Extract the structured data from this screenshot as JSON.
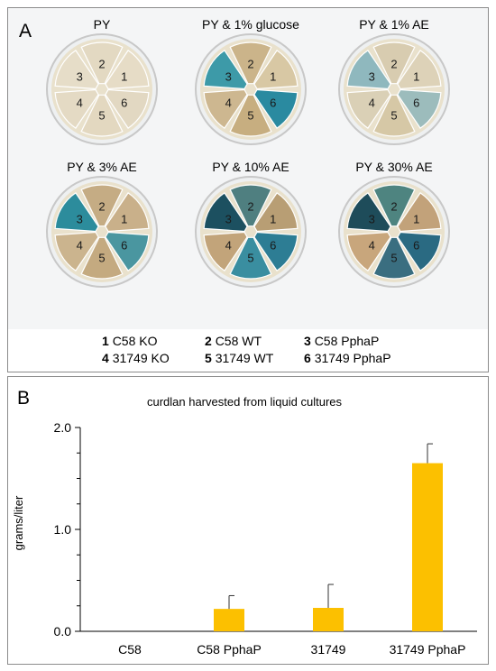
{
  "panel_a": {
    "letter": "A",
    "plates": [
      {
        "title": "PY",
        "sectors": [
          {
            "num": "1",
            "color": "#e6dcc6"
          },
          {
            "num": "6",
            "color": "#e2d8c2"
          },
          {
            "num": "5",
            "color": "#e3d8c0"
          },
          {
            "num": "4",
            "color": "#e4dac4"
          },
          {
            "num": "3",
            "color": "#e6ddc8"
          },
          {
            "num": "2",
            "color": "#e3d9c2"
          }
        ]
      },
      {
        "title": "PY & 1% glucose",
        "sectors": [
          {
            "num": "1",
            "color": "#d8c8a4"
          },
          {
            "num": "6",
            "color": "#2a8aa0"
          },
          {
            "num": "5",
            "color": "#c7ae80"
          },
          {
            "num": "4",
            "color": "#cdb790"
          },
          {
            "num": "3",
            "color": "#3d9aa8"
          },
          {
            "num": "2",
            "color": "#cbb48a"
          }
        ]
      },
      {
        "title": "PY & 1% AE",
        "sectors": [
          {
            "num": "1",
            "color": "#ddd2b8"
          },
          {
            "num": "6",
            "color": "#9cbcbc"
          },
          {
            "num": "5",
            "color": "#d6c8a6"
          },
          {
            "num": "4",
            "color": "#dad0b6"
          },
          {
            "num": "3",
            "color": "#8fb8be"
          },
          {
            "num": "2",
            "color": "#d8ccb0"
          }
        ]
      },
      {
        "title": "PY & 3% AE",
        "sectors": [
          {
            "num": "1",
            "color": "#c9b08a"
          },
          {
            "num": "6",
            "color": "#4a96a0"
          },
          {
            "num": "5",
            "color": "#c4aa80"
          },
          {
            "num": "4",
            "color": "#cbb48e"
          },
          {
            "num": "3",
            "color": "#2c8c9c"
          },
          {
            "num": "2",
            "color": "#c5ac84"
          }
        ]
      },
      {
        "title": "PY & 10% AE",
        "sectors": [
          {
            "num": "1",
            "color": "#b89e74"
          },
          {
            "num": "6",
            "color": "#2d7d94"
          },
          {
            "num": "5",
            "color": "#3a8ea0"
          },
          {
            "num": "4",
            "color": "#c2a47a"
          },
          {
            "num": "3",
            "color": "#1c5060"
          },
          {
            "num": "2",
            "color": "#4f7f80"
          }
        ]
      },
      {
        "title": "PY & 30% AE",
        "sectors": [
          {
            "num": "1",
            "color": "#c2a27a"
          },
          {
            "num": "6",
            "color": "#2a6a82"
          },
          {
            "num": "5",
            "color": "#3a6e80"
          },
          {
            "num": "4",
            "color": "#c8a67c"
          },
          {
            "num": "3",
            "color": "#1e4c5a"
          },
          {
            "num": "2",
            "color": "#4e8480"
          }
        ]
      }
    ],
    "legend": [
      {
        "num": "1",
        "label": "C58 KO"
      },
      {
        "num": "2",
        "label": "C58 WT"
      },
      {
        "num": "3",
        "label": "C58 PphaP"
      },
      {
        "num": "4",
        "label": "31749 KO"
      },
      {
        "num": "5",
        "label": "31749 WT"
      },
      {
        "num": "6",
        "label": "31749 PphaP"
      }
    ]
  },
  "panel_b": {
    "letter": "B"
  },
  "chart_data": {
    "type": "bar",
    "title": "curdlan harvested from liquid cultures",
    "ylabel": "grams/liter",
    "xlabel": "",
    "categories": [
      "C58",
      "C58 PphaP",
      "31749",
      "31749 PphaP"
    ],
    "values": [
      0.0,
      0.22,
      0.23,
      1.65
    ],
    "error_bars": [
      0.0,
      0.13,
      0.23,
      0.19
    ],
    "ylim": [
      0,
      2.0
    ],
    "yticks": [
      0.0,
      1.0,
      2.0
    ],
    "ytick_labels": [
      "0.0",
      "1.0",
      "2.0"
    ],
    "bar_color": "#fcc000",
    "grid": false,
    "legend": "none"
  }
}
